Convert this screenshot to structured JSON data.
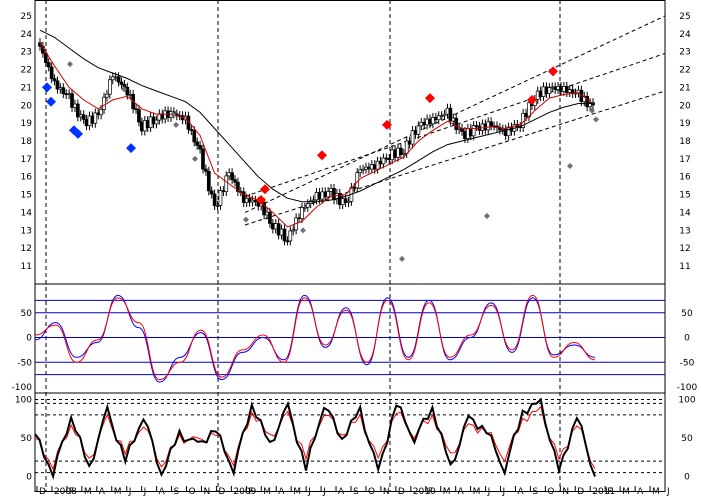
{
  "chart_data": [
    {
      "type": "candlestick",
      "panel": "price",
      "ylim": [
        10.5,
        25.5
      ],
      "ytick_labels": [
        "11",
        "12",
        "13",
        "14",
        "15",
        "16",
        "17",
        "18",
        "19",
        "20",
        "21",
        "22",
        "23",
        "24",
        "25"
      ],
      "grid": false,
      "series": [
        {
          "kind": "ohlc",
          "color": "#000000",
          "close": [
            23.3,
            21.2,
            20.4,
            19.0,
            19.4,
            21.7,
            20.8,
            18.8,
            19.3,
            19.6,
            19.2,
            17.3,
            14.2,
            16.2,
            14.7,
            14.6,
            13.3,
            12.5,
            14.2,
            14.9,
            15.1,
            14.4,
            16.4,
            16.6,
            17.2,
            17.5,
            18.9,
            19.2,
            19.6,
            18.3,
            18.7,
            18.9,
            18.5,
            19.0,
            20.5,
            21.0,
            20.9,
            20.6,
            19.8
          ]
        },
        {
          "kind": "moving-average",
          "color": "#d00000",
          "values": [
            23.5,
            22.2,
            21.0,
            20.3,
            19.8,
            20.3,
            20.5,
            19.8,
            19.5,
            19.5,
            19.3,
            18.3,
            16.2,
            15.6,
            15.0,
            14.7,
            14.0,
            13.2,
            13.5,
            14.3,
            14.9,
            15.0,
            15.9,
            16.3,
            16.7,
            17.1,
            18.0,
            18.6,
            19.1,
            18.7,
            18.7,
            18.8,
            18.7,
            18.9,
            19.7,
            20.4,
            20.6,
            20.7,
            20.1
          ]
        },
        {
          "kind": "moving-average",
          "color": "#000000",
          "values": [
            24.2,
            23.8,
            23.2,
            22.6,
            22.1,
            21.8,
            21.5,
            21.1,
            20.8,
            20.5,
            20.2,
            19.6,
            18.7,
            17.8,
            16.9,
            16.0,
            15.3,
            14.8,
            14.6,
            14.6,
            14.7,
            14.9,
            15.2,
            15.6,
            16.0,
            16.4,
            16.9,
            17.4,
            17.8,
            18.0,
            18.2,
            18.4,
            18.6,
            18.8,
            19.2,
            19.6,
            19.9,
            20.1,
            20.1
          ]
        }
      ],
      "channel_lines": [
        [
          14.0,
          25.0
        ],
        [
          14.9,
          22.9
        ],
        [
          13.3,
          20.8
        ]
      ],
      "signals": [
        {
          "color": "#0033ff",
          "values": [
            21.0,
            20.2,
            18.6,
            18.4,
            17.6
          ]
        },
        {
          "color": "#ff0000",
          "values": [
            14.7,
            15.3,
            17.2,
            18.9,
            20.4,
            20.3,
            21.9
          ]
        },
        {
          "color": "#707070",
          "values": [
            22.3,
            20.9,
            19.5,
            18.9,
            17.0,
            13.6,
            13.0,
            11.4,
            13.8,
            16.6,
            19.7,
            19.2
          ]
        }
      ]
    },
    {
      "type": "line",
      "panel": "oscillator",
      "ylim": [
        -110,
        100
      ],
      "ytick_labels": [
        "-100",
        "-50",
        "0",
        "50"
      ],
      "levels": [
        -75,
        -50,
        0,
        50,
        75
      ],
      "series": [
        {
          "color": "#0000ff",
          "values": [
            -5,
            30,
            -40,
            -10,
            85,
            20,
            -90,
            -40,
            10,
            -85,
            -30,
            0,
            -45,
            85,
            -20,
            60,
            -55,
            80,
            -40,
            75,
            -45,
            0,
            70,
            -30,
            80,
            -35,
            -15,
            -40
          ]
        },
        {
          "color": "#ff0000",
          "values": [
            5,
            25,
            -50,
            -5,
            80,
            30,
            -85,
            -50,
            15,
            -80,
            -25,
            5,
            -50,
            80,
            -15,
            55,
            -50,
            75,
            -45,
            70,
            -40,
            5,
            65,
            -25,
            85,
            -40,
            -10,
            -45
          ]
        }
      ]
    },
    {
      "type": "line",
      "panel": "stochastic",
      "ylim": [
        -2,
        102
      ],
      "ytick_labels": [
        "0",
        "50",
        "100"
      ],
      "levels": [
        5,
        20,
        80,
        95,
        100
      ],
      "series": [
        {
          "color": "#000000",
          "values": [
            55,
            5,
            80,
            10,
            85,
            20,
            80,
            5,
            55,
            40,
            60,
            10,
            95,
            40,
            90,
            10,
            95,
            50,
            85,
            5,
            95,
            50,
            90,
            10,
            75,
            60,
            10,
            85,
            95,
            5,
            80,
            0
          ]
        },
        {
          "color": "#ff0000",
          "values": [
            50,
            15,
            70,
            20,
            75,
            30,
            70,
            15,
            50,
            45,
            55,
            20,
            85,
            50,
            80,
            25,
            85,
            55,
            75,
            20,
            85,
            55,
            80,
            25,
            65,
            60,
            25,
            75,
            85,
            20,
            70,
            10
          ]
        }
      ]
    }
  ],
  "x_axis": {
    "month_labels": [
      "D",
      "2008",
      "F",
      "M",
      "A",
      "M",
      "J",
      "J",
      "A",
      "S",
      "O",
      "N",
      "D",
      "2009",
      "F",
      "M",
      "A",
      "M",
      "J",
      "J",
      "A",
      "S",
      "O",
      "N",
      "D",
      "2010",
      "F",
      "M",
      "A",
      "M",
      "J",
      "J",
      "A",
      "S",
      "O",
      "N",
      "D",
      "2011",
      "F",
      "M",
      "A",
      "M",
      "J"
    ]
  }
}
